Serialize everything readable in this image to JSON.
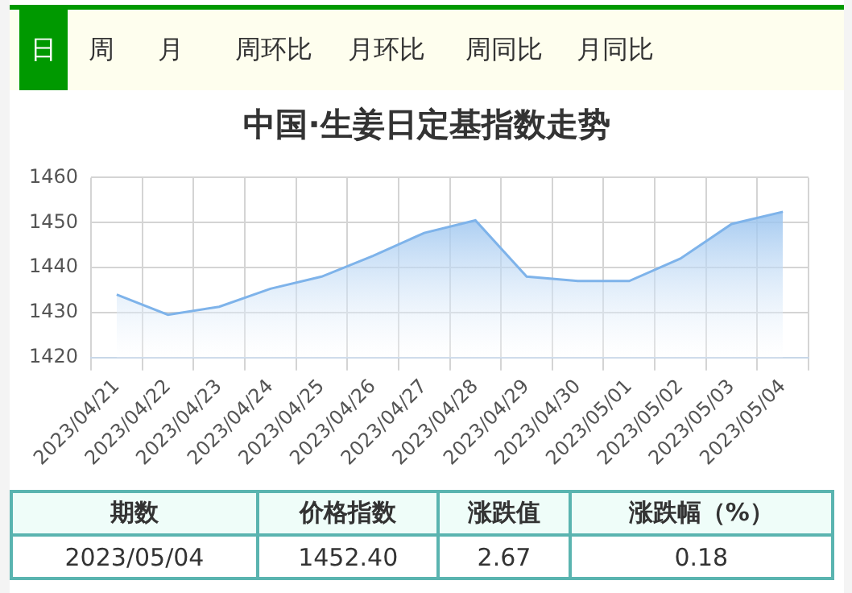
{
  "chart_data": {
    "type": "area",
    "title": "中国·生姜日定基指数走势",
    "categories": [
      "2023/04/21",
      "2023/04/22",
      "2023/04/23",
      "2023/04/24",
      "2023/04/25",
      "2023/04/26",
      "2023/04/27",
      "2023/04/28",
      "2023/04/29",
      "2023/04/30",
      "2023/05/01",
      "2023/05/02",
      "2023/05/03",
      "2023/05/04"
    ],
    "series": [
      {
        "color": "#7eb3ea",
        "values": [
          1434,
          1429.5,
          1431.3,
          1435.3,
          1438,
          1442.6,
          1447.7,
          1450.5,
          1438,
          1437,
          1437,
          1442,
          1449.7,
          1452.4
        ]
      }
    ],
    "ylim": [
      1420,
      1460
    ],
    "yticks": [
      1420,
      1430,
      1440,
      1450,
      1460
    ],
    "grid": true,
    "legend": false,
    "annotations": [
      "日",
      "周",
      "月",
      "周环比",
      "月环比",
      "周同比",
      "月同比",
      "期数",
      "价格指数",
      "涨跌值",
      "涨跌幅（%）",
      "2023/05/04",
      "1452.40",
      "2.67",
      "0.18"
    ]
  }
}
